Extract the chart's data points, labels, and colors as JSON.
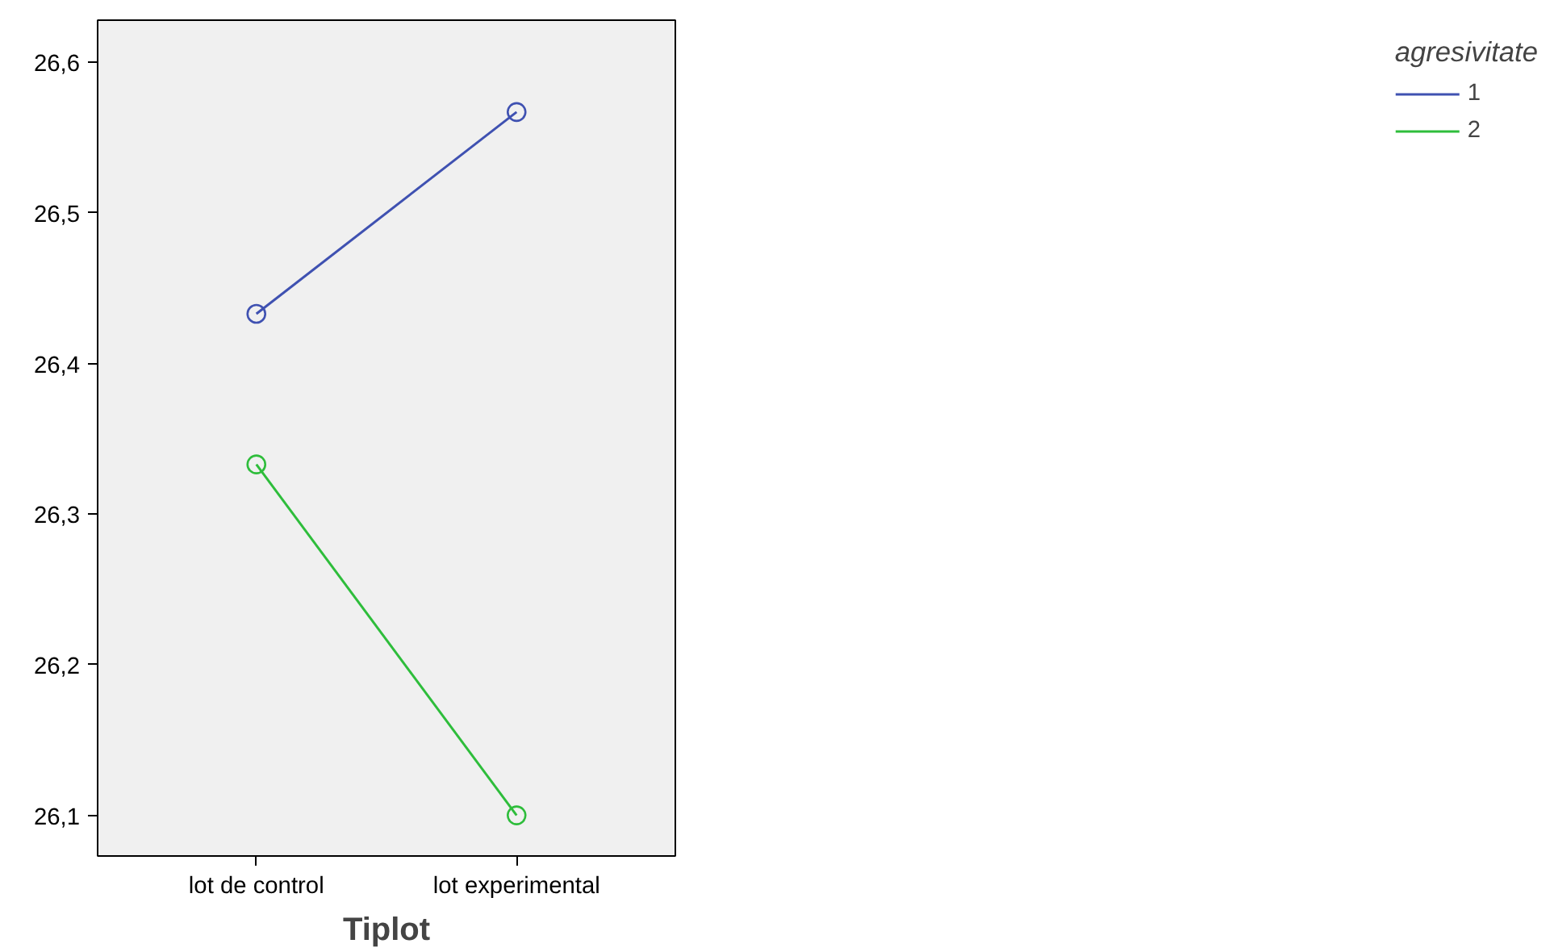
{
  "chart_data": {
    "type": "line",
    "xlabel": "Tiplot",
    "legend_title": "agresivitate",
    "categories": [
      "lot de control",
      "lot experimental"
    ],
    "series": [
      {
        "name": "1",
        "color": "#3f51b1",
        "values": [
          26.433,
          26.567
        ]
      },
      {
        "name": "2",
        "color": "#2ebd3b",
        "values": [
          26.333,
          26.1
        ]
      }
    ],
    "ylim": [
      26.073,
      26.628
    ],
    "yticks": [
      {
        "value": 26.1,
        "label": "26,1"
      },
      {
        "value": 26.2,
        "label": "26,2"
      },
      {
        "value": 26.3,
        "label": "26,3"
      },
      {
        "value": 26.4,
        "label": "26,4"
      },
      {
        "value": 26.5,
        "label": "26,5"
      },
      {
        "value": 26.6,
        "label": "26,6"
      }
    ],
    "grid": false,
    "legend": "top right",
    "marker": "circle",
    "line_style": "solid"
  }
}
